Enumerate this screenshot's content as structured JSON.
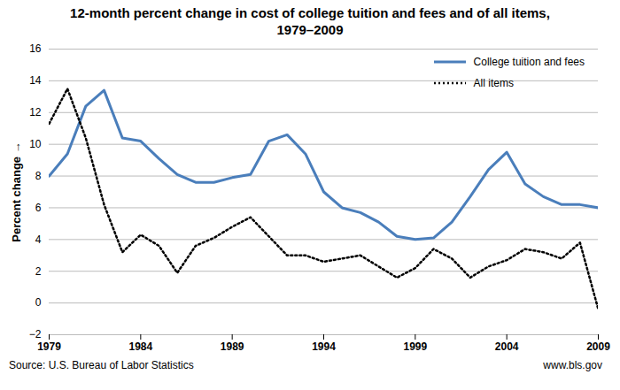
{
  "chart_data": {
    "type": "line",
    "title": "12-month percent change in cost of college tuition and fees and of all items, 1979–2009",
    "y_label": "Percent change",
    "source": "Source: U.S. Bureau of Labor Statistics",
    "annotations": [
      "www.bls.gov"
    ],
    "x": [
      1979,
      1980,
      1981,
      1982,
      1983,
      1984,
      1985,
      1986,
      1987,
      1988,
      1989,
      1990,
      1991,
      1992,
      1993,
      1994,
      1995,
      1996,
      1997,
      1998,
      1999,
      2000,
      2001,
      2002,
      2003,
      2004,
      2005,
      2006,
      2007,
      2008,
      2009
    ],
    "series": [
      {
        "name": "College tuition and fees",
        "color": "#4a7ebb",
        "line_style": "solid",
        "values": [
          8.0,
          9.4,
          12.4,
          13.4,
          10.4,
          10.2,
          9.1,
          8.1,
          7.6,
          7.6,
          7.9,
          8.1,
          10.2,
          10.6,
          9.4,
          7.0,
          6.0,
          5.7,
          5.1,
          4.2,
          4.0,
          4.1,
          5.1,
          6.7,
          8.4,
          9.5,
          7.5,
          6.7,
          6.2,
          6.2,
          6.0
        ]
      },
      {
        "name": "All items",
        "color": "#000000",
        "line_style": "dotted",
        "values": [
          11.3,
          13.5,
          10.4,
          6.2,
          3.2,
          4.3,
          3.6,
          1.9,
          3.6,
          4.1,
          4.8,
          5.4,
          4.2,
          3.0,
          3.0,
          2.6,
          2.8,
          3.0,
          2.3,
          1.6,
          2.2,
          3.4,
          2.8,
          1.6,
          2.3,
          2.7,
          3.4,
          3.2,
          2.8,
          3.8,
          -0.4
        ]
      }
    ],
    "xlim": [
      1979,
      2009
    ],
    "xticks": [
      1979,
      1984,
      1989,
      1994,
      1999,
      2004,
      2009
    ],
    "ylim": [
      -2,
      16
    ],
    "yticks": [
      -2,
      0,
      2,
      4,
      6,
      8,
      10,
      12,
      14,
      16
    ],
    "grid": true,
    "legend": "top-right"
  }
}
